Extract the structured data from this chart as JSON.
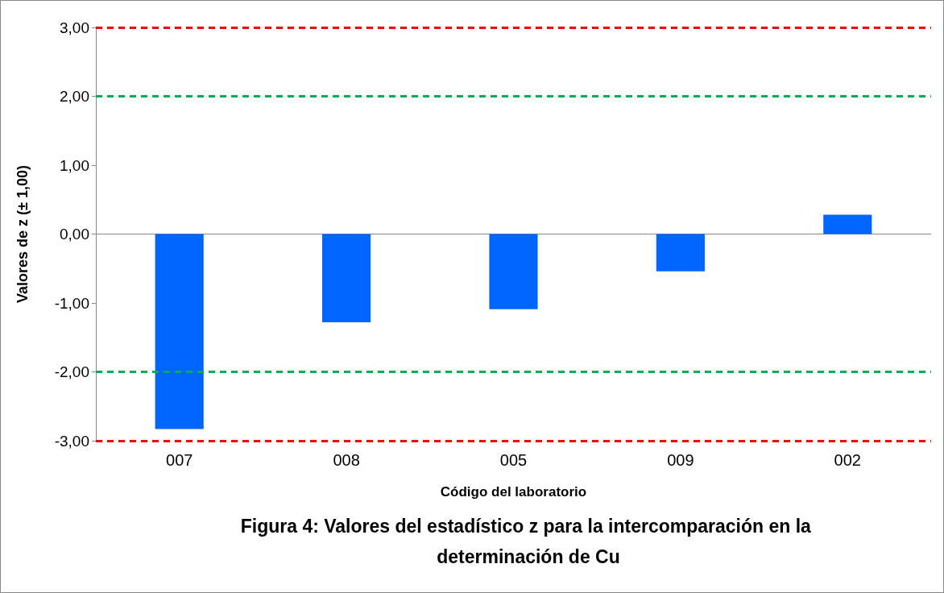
{
  "chart_data": {
    "type": "bar",
    "title": "Figura 4: Valores del estadístico z para la intercomparación en la determinación de Cu",
    "xlabel": "Código del laboratorio",
    "ylabel": "Valores de z (± 1,00)",
    "categories": [
      "007",
      "008",
      "005",
      "009",
      "002"
    ],
    "values": [
      -2.83,
      -1.28,
      -1.09,
      -0.54,
      0.28
    ],
    "color": "#0066ff",
    "ylim": [
      -3,
      3
    ],
    "yticks": [
      {
        "value": -3,
        "label": "-3,00"
      },
      {
        "value": -2,
        "label": "-2,00"
      },
      {
        "value": -1,
        "label": "-1,00"
      },
      {
        "value": 0,
        "label": "0,00"
      },
      {
        "value": 1,
        "label": "1,00"
      },
      {
        "value": 2,
        "label": "2,00"
      },
      {
        "value": 3,
        "label": "3,00"
      }
    ],
    "ref_lines": [
      {
        "axis": "y",
        "value": 3,
        "color": "#ff0000",
        "line_style": "dashed"
      },
      {
        "axis": "y",
        "value": 2,
        "color": "#00b050",
        "line_style": "dashed"
      },
      {
        "axis": "y",
        "value": -2,
        "color": "#00b050",
        "line_style": "dashed"
      },
      {
        "axis": "y",
        "value": -3,
        "color": "#ff0000",
        "line_style": "dashed"
      }
    ],
    "grid": false
  }
}
